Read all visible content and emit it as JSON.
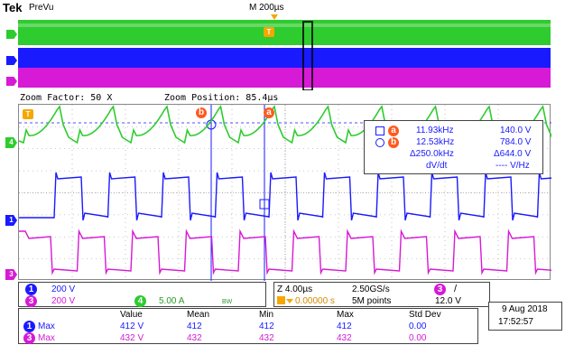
{
  "header": {
    "brand": "Tek",
    "mode": "PreVu",
    "timebase": "M 200µs"
  },
  "overview": {
    "trigger_marker": "T"
  },
  "zoom_bar": {
    "factor": "Zoom Factor: 50 X",
    "position": "Zoom Position: 85.4µs"
  },
  "cursor_readout": {
    "a_badge": "a",
    "b_badge": "b",
    "a_freq": "11.93kHz",
    "a_volt": "140.0 V",
    "b_freq": "12.53kHz",
    "b_volt": "784.0 V",
    "delta_freq": "Δ250.0kHz",
    "delta_volt": "Δ644.0 V",
    "dvdt_label": "dV/dt",
    "vhz": "---- V/Hz"
  },
  "trace_markers": {
    "ch1": "1",
    "ch3": "3",
    "ch4": "4",
    "trigger": "T",
    "cursor_a": "a",
    "cursor_b": "b"
  },
  "channel_panel": {
    "ch1_num": "1",
    "ch1_scale": "200 V",
    "ch3_num": "3",
    "ch3_scale": "200 V",
    "ch4_num": "4",
    "ch4_scale": "5.00 A",
    "ch4_bw": "BW"
  },
  "acq_panel": {
    "zoom_time": "Z 4.00µs",
    "sample_rate": "2.50GS/s",
    "trig_ch": "3",
    "trig_slope": "/",
    "trig_pos": "0.00000 s",
    "record_len": "5M points",
    "trig_level": "12.0 V"
  },
  "measurements": {
    "headers": [
      "Value",
      "Mean",
      "Min",
      "Max",
      "Std Dev"
    ],
    "rows": [
      {
        "ch": "1",
        "label": "Max",
        "value": "412 V",
        "mean": "412",
        "min": "412",
        "max": "412",
        "std": "0.00"
      },
      {
        "ch": "3",
        "label": "Max",
        "value": "432 V",
        "mean": "432",
        "min": "432",
        "max": "432",
        "std": "0.00"
      }
    ]
  },
  "datetime": {
    "date": "9 Aug 2018",
    "time": "17:52:57"
  },
  "colors": {
    "ch1": "#1a1aff",
    "ch3": "#d61ad6",
    "ch4": "#2ecc2e",
    "cursor": "#ff5a1f",
    "accent": "#f7a600"
  }
}
